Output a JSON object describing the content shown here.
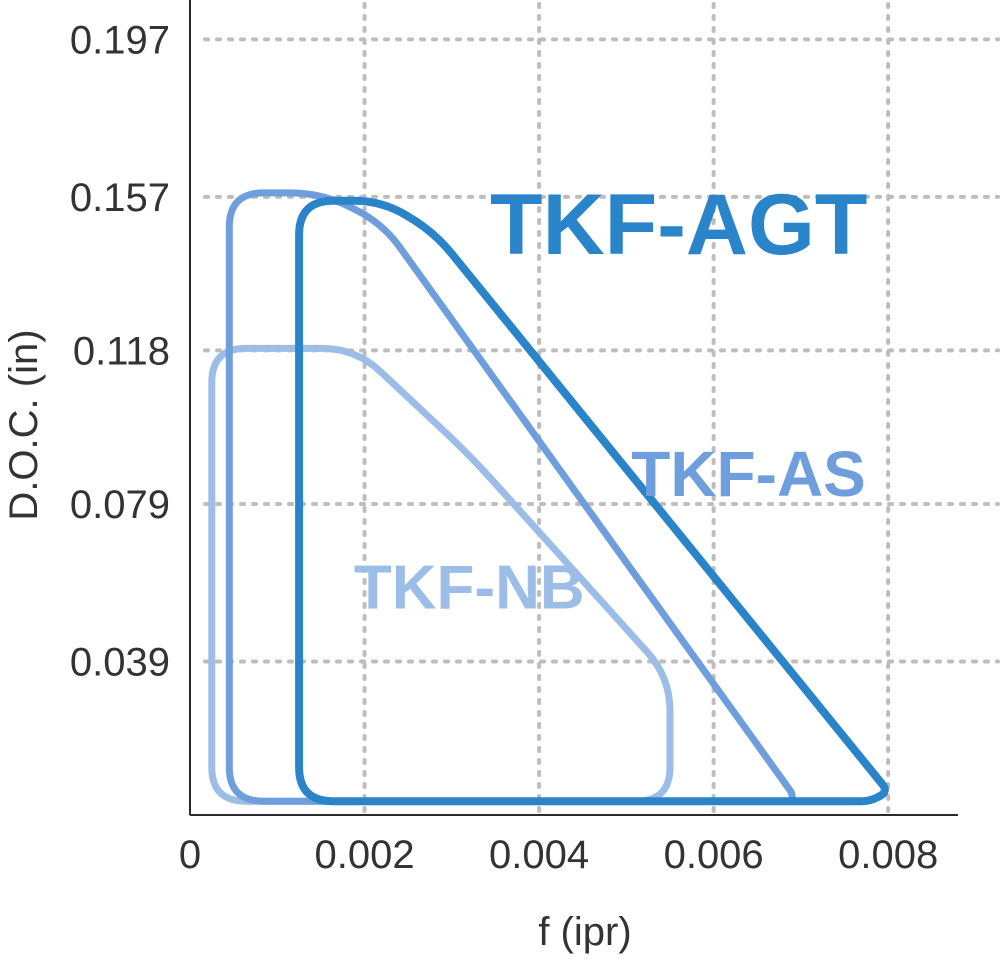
{
  "chart_data": {
    "type": "area",
    "xlabel": "f (ipr)",
    "ylabel": "D.O.C. (in)",
    "x_ticks": [
      {
        "value": 0,
        "label": "0"
      },
      {
        "value": 0.002,
        "label": "0.002"
      },
      {
        "value": 0.004,
        "label": "0.004"
      },
      {
        "value": 0.006,
        "label": "0.006"
      },
      {
        "value": 0.008,
        "label": "0.008"
      }
    ],
    "y_ticks": [
      {
        "value": 0.039,
        "label": "0.039"
      },
      {
        "value": 0.079,
        "label": "0.079"
      },
      {
        "value": 0.118,
        "label": "0.118"
      },
      {
        "value": 0.157,
        "label": "0.157"
      },
      {
        "value": 0.197,
        "label": "0.197"
      }
    ],
    "xlim": [
      0,
      0.0088
    ],
    "ylim": [
      0,
      0.207
    ],
    "grid": true,
    "series": [
      {
        "name": "TKF-NB",
        "color": "#9cbde6",
        "points": [
          [
            0.00025,
            0.0035
          ],
          [
            0.00025,
            0.1185
          ],
          [
            0.0019,
            0.1185
          ],
          [
            0.0032,
            0.0915
          ],
          [
            0.0055,
            0.035
          ],
          [
            0.0055,
            0.0035
          ]
        ]
      },
      {
        "name": "TKF-AS",
        "color": "#6e9fdc",
        "points": [
          [
            0.00045,
            0.0035
          ],
          [
            0.00045,
            0.158
          ],
          [
            0.0015,
            0.158
          ],
          [
            0.0022,
            0.1505
          ],
          [
            0.0069,
            0.0055
          ],
          [
            0.0069,
            0.0035
          ]
        ]
      },
      {
        "name": "TKF-AGT",
        "color": "#2a84c9",
        "points": [
          [
            0.00125,
            0.0035
          ],
          [
            0.00125,
            0.156
          ],
          [
            0.0022,
            0.156
          ],
          [
            0.0028,
            0.148
          ],
          [
            0.008,
            0.006
          ],
          [
            0.0078,
            0.0035
          ]
        ]
      }
    ],
    "annotations": [
      {
        "text": "TKF-AGT",
        "series": "TKF-AGT",
        "x": 0.0056,
        "y": 0.1425
      },
      {
        "text": "TKF-AS",
        "series": "TKF-AS",
        "x": 0.0064,
        "y": 0.081
      },
      {
        "text": "TKF-NB",
        "series": "TKF-NB",
        "x": 0.0032,
        "y": 0.0525
      }
    ]
  }
}
